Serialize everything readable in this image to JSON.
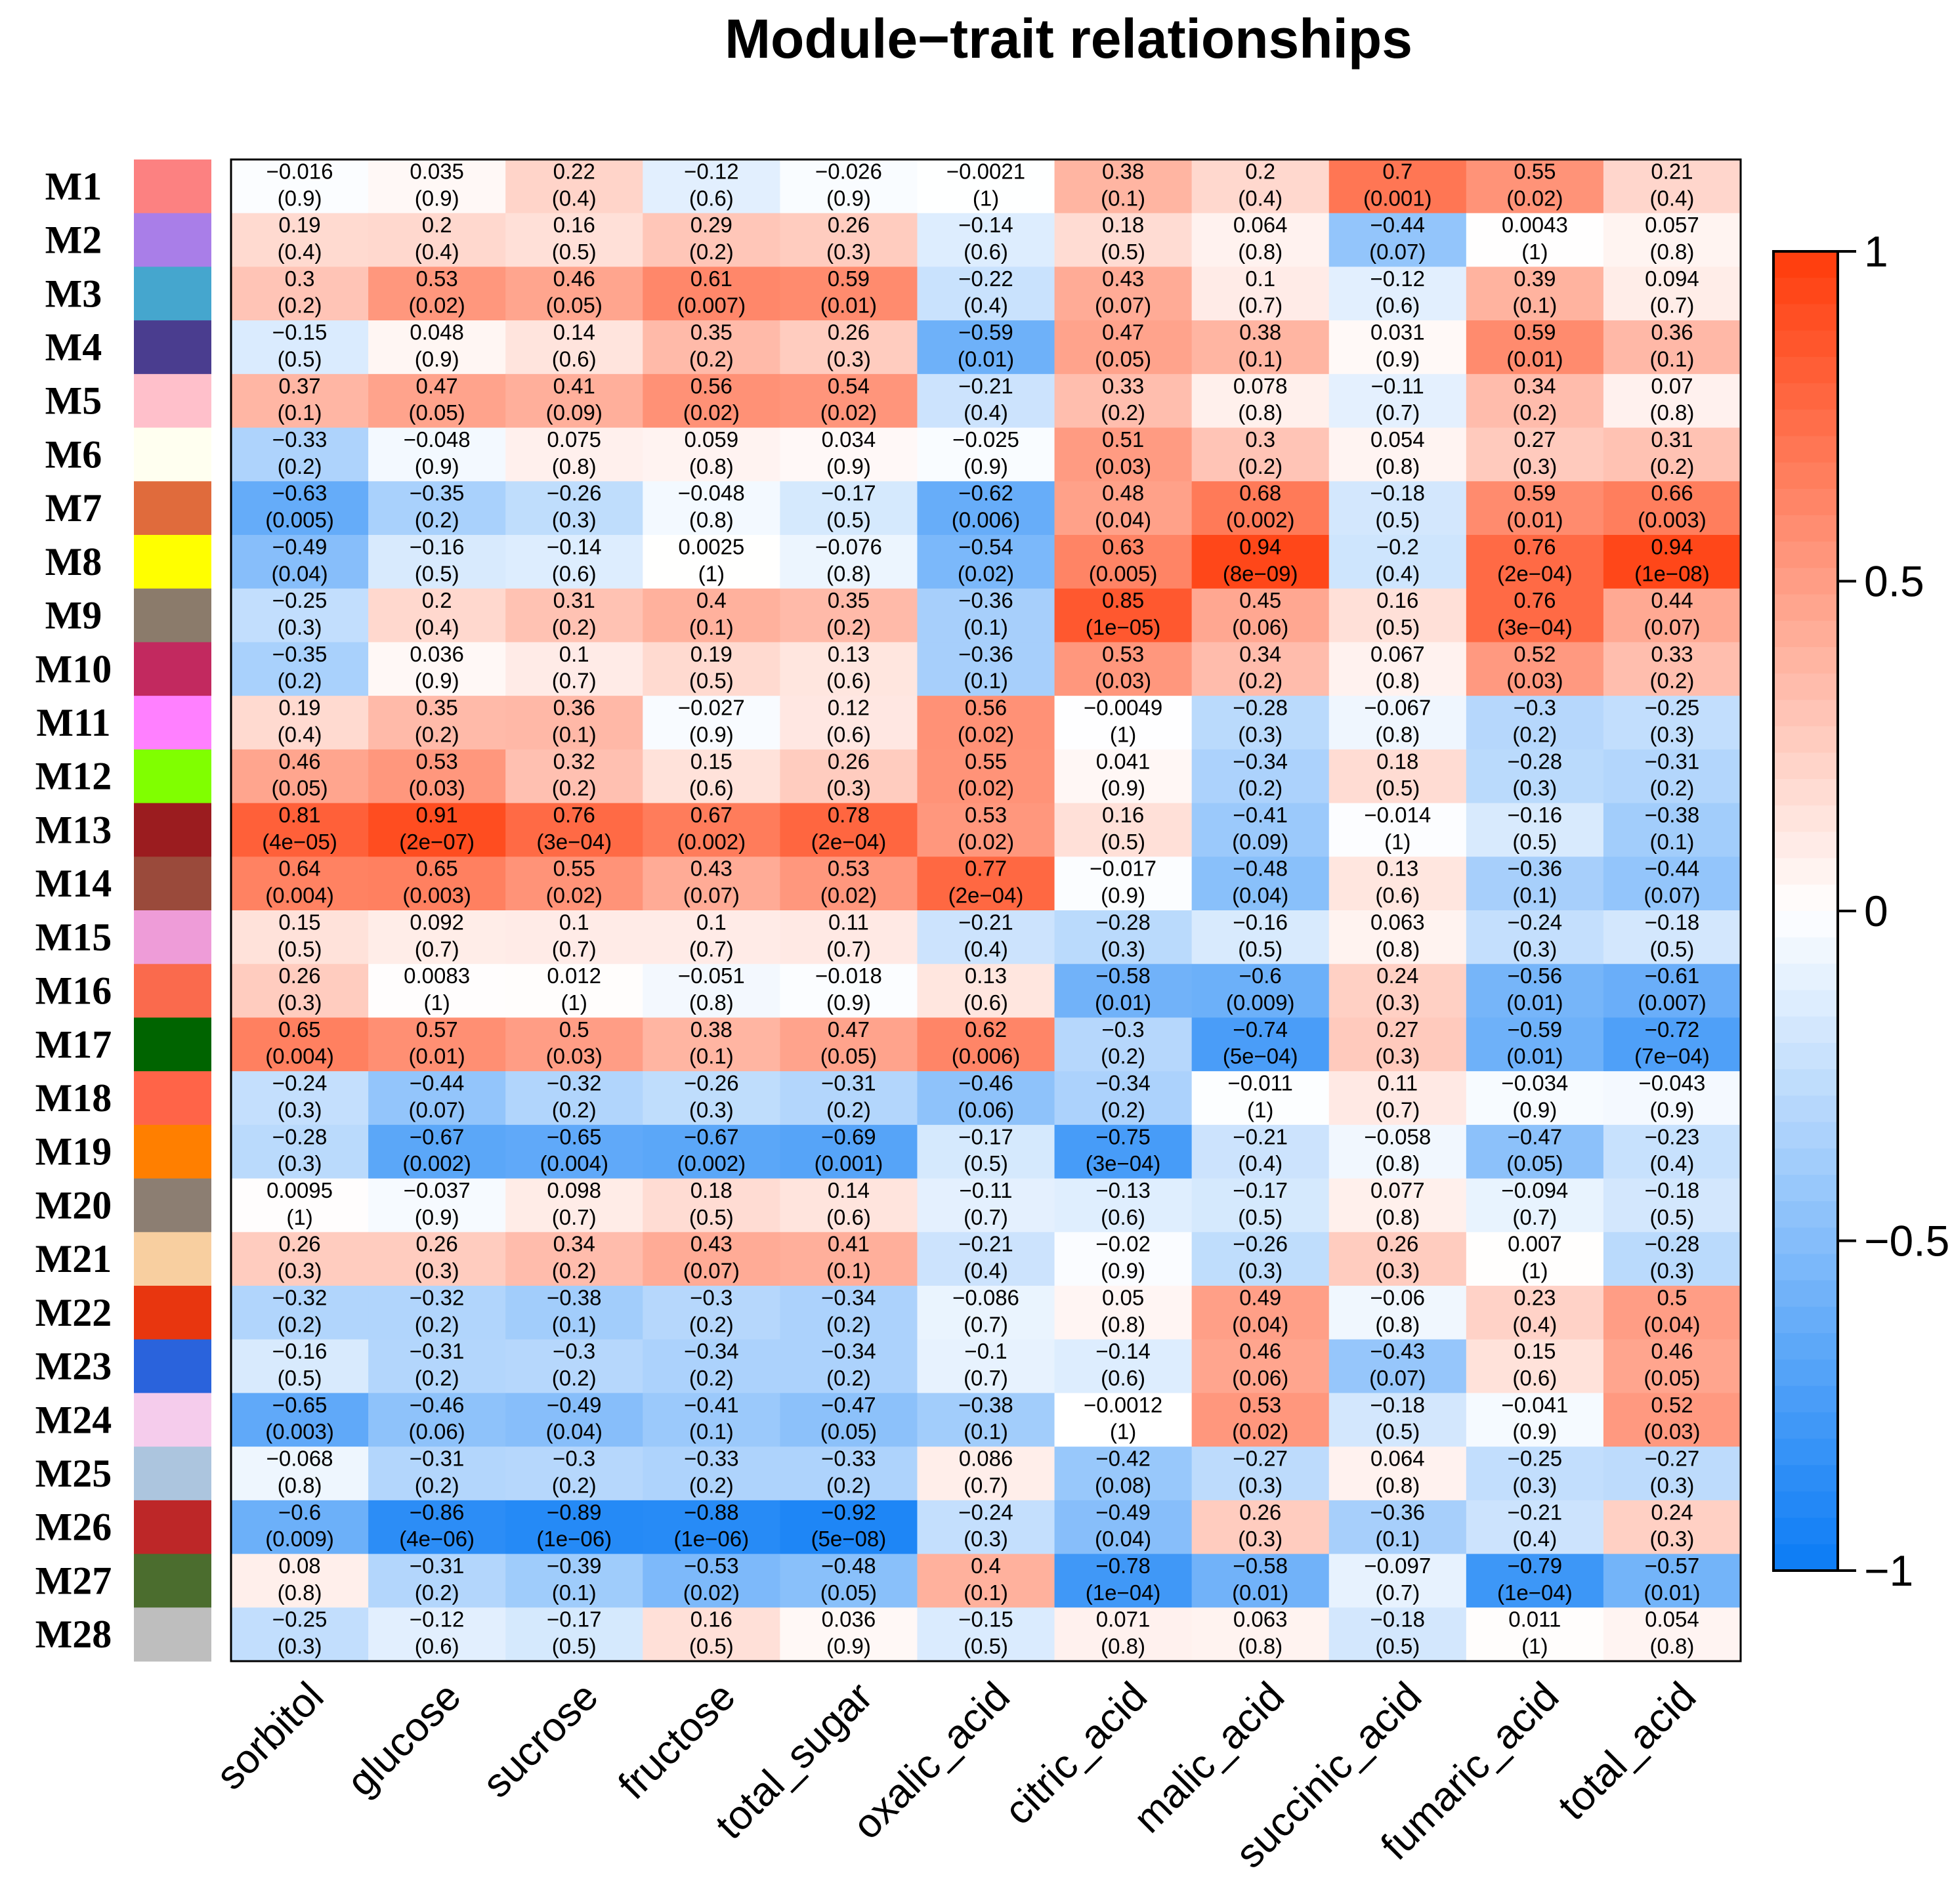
{
  "chart_data": {
    "type": "heatmap",
    "title": "Module−trait relationships",
    "modules": [
      "M1",
      "M2",
      "M3",
      "M4",
      "M5",
      "M6",
      "M7",
      "M8",
      "M9",
      "M10",
      "M11",
      "M12",
      "M13",
      "M14",
      "M15",
      "M16",
      "M17",
      "M18",
      "M19",
      "M20",
      "M21",
      "M22",
      "M23",
      "M24",
      "M25",
      "M26",
      "M27",
      "M28"
    ],
    "module_colors": [
      "#FC8181",
      "#A97EE8",
      "#45A6CE",
      "#4A3D8F",
      "#FFC0CB",
      "#FFFFF0",
      "#E06B3C",
      "#FFFF00",
      "#8B7B6B",
      "#C2295F",
      "#FF80FF",
      "#80FF00",
      "#9B1C1F",
      "#9A4A3B",
      "#EE9CD8",
      "#FA6A4D",
      "#006400",
      "#FF6448",
      "#FF7F00",
      "#8C7E72",
      "#F8CFA0",
      "#E8360F",
      "#2A63DC",
      "#F5CCEC",
      "#ACC5DE",
      "#BD2728",
      "#4B6D2E",
      "#BEBEBE"
    ],
    "traits": [
      "sorbitol",
      "glucose",
      "sucrose",
      "fructose",
      "total_sugar",
      "oxalic_acid",
      "citric_acid",
      "malic_acid",
      "succinic_acid",
      "fumaric_acid",
      "total_acid"
    ],
    "values": [
      [
        -0.016,
        0.035,
        0.22,
        -0.12,
        -0.026,
        -0.0021,
        0.38,
        0.2,
        0.7,
        0.55,
        0.21
      ],
      [
        0.19,
        0.2,
        0.16,
        0.29,
        0.26,
        -0.14,
        0.18,
        0.064,
        -0.44,
        0.0043,
        0.057
      ],
      [
        0.3,
        0.53,
        0.46,
        0.61,
        0.59,
        -0.22,
        0.43,
        0.1,
        -0.12,
        0.39,
        0.094
      ],
      [
        -0.15,
        0.048,
        0.14,
        0.35,
        0.26,
        -0.59,
        0.47,
        0.38,
        0.031,
        0.59,
        0.36
      ],
      [
        0.37,
        0.47,
        0.41,
        0.56,
        0.54,
        -0.21,
        0.33,
        0.078,
        -0.11,
        0.34,
        0.07
      ],
      [
        -0.33,
        -0.048,
        0.075,
        0.059,
        0.034,
        -0.025,
        0.51,
        0.3,
        0.054,
        0.27,
        0.31
      ],
      [
        -0.63,
        -0.35,
        -0.26,
        -0.048,
        -0.17,
        -0.62,
        0.48,
        0.68,
        -0.18,
        0.59,
        0.66
      ],
      [
        -0.49,
        -0.16,
        -0.14,
        0.0025,
        -0.076,
        -0.54,
        0.63,
        0.94,
        -0.2,
        0.76,
        0.94
      ],
      [
        -0.25,
        0.2,
        0.31,
        0.4,
        0.35,
        -0.36,
        0.85,
        0.45,
        0.16,
        0.76,
        0.44
      ],
      [
        -0.35,
        0.036,
        0.1,
        0.19,
        0.13,
        -0.36,
        0.53,
        0.34,
        0.067,
        0.52,
        0.33
      ],
      [
        0.19,
        0.35,
        0.36,
        -0.027,
        0.12,
        0.56,
        -0.0049,
        -0.28,
        -0.067,
        -0.3,
        -0.25
      ],
      [
        0.46,
        0.53,
        0.32,
        0.15,
        0.26,
        0.55,
        0.041,
        -0.34,
        0.18,
        -0.28,
        -0.31
      ],
      [
        0.81,
        0.91,
        0.76,
        0.67,
        0.78,
        0.53,
        0.16,
        -0.41,
        -0.014,
        -0.16,
        -0.38
      ],
      [
        0.64,
        0.65,
        0.55,
        0.43,
        0.53,
        0.77,
        -0.017,
        -0.48,
        0.13,
        -0.36,
        -0.44
      ],
      [
        0.15,
        0.092,
        0.1,
        0.1,
        0.11,
        -0.21,
        -0.28,
        -0.16,
        0.063,
        -0.24,
        -0.18
      ],
      [
        0.26,
        0.0083,
        0.012,
        -0.051,
        -0.018,
        0.13,
        -0.58,
        -0.6,
        0.24,
        -0.56,
        -0.61
      ],
      [
        0.65,
        0.57,
        0.5,
        0.38,
        0.47,
        0.62,
        -0.3,
        -0.74,
        0.27,
        -0.59,
        -0.72
      ],
      [
        -0.24,
        -0.44,
        -0.32,
        -0.26,
        -0.31,
        -0.46,
        -0.34,
        -0.011,
        0.11,
        -0.034,
        -0.043
      ],
      [
        -0.28,
        -0.67,
        -0.65,
        -0.67,
        -0.69,
        -0.17,
        -0.75,
        -0.21,
        -0.058,
        -0.47,
        -0.23
      ],
      [
        0.0095,
        -0.037,
        0.098,
        0.18,
        0.14,
        -0.11,
        -0.13,
        -0.17,
        0.077,
        -0.094,
        -0.18
      ],
      [
        0.26,
        0.26,
        0.34,
        0.43,
        0.41,
        -0.21,
        -0.02,
        -0.26,
        0.26,
        0.007,
        -0.28
      ],
      [
        -0.32,
        -0.32,
        -0.38,
        -0.3,
        -0.34,
        -0.086,
        0.05,
        0.49,
        -0.06,
        0.23,
        0.5
      ],
      [
        -0.16,
        -0.31,
        -0.3,
        -0.34,
        -0.34,
        -0.1,
        -0.14,
        0.46,
        -0.43,
        0.15,
        0.46
      ],
      [
        -0.65,
        -0.46,
        -0.49,
        -0.41,
        -0.47,
        -0.38,
        -0.0012,
        0.53,
        -0.18,
        -0.041,
        0.52
      ],
      [
        -0.068,
        -0.31,
        -0.3,
        -0.33,
        -0.33,
        0.086,
        -0.42,
        -0.27,
        0.064,
        -0.25,
        -0.27
      ],
      [
        -0.6,
        -0.86,
        -0.89,
        -0.88,
        -0.92,
        -0.24,
        -0.49,
        0.26,
        -0.36,
        -0.21,
        0.24
      ],
      [
        0.08,
        -0.31,
        -0.39,
        -0.53,
        -0.48,
        0.4,
        -0.78,
        -0.58,
        -0.097,
        -0.79,
        -0.57
      ],
      [
        -0.25,
        -0.12,
        -0.17,
        0.16,
        0.036,
        -0.15,
        0.071,
        0.063,
        -0.18,
        0.011,
        0.054
      ]
    ],
    "value_labels": [
      [
        "−0.016",
        "0.035",
        "0.22",
        "−0.12",
        "−0.026",
        "−0.0021",
        "0.38",
        "0.2",
        "0.7",
        "0.55",
        "0.21"
      ],
      [
        "0.19",
        "0.2",
        "0.16",
        "0.29",
        "0.26",
        "−0.14",
        "0.18",
        "0.064",
        "−0.44",
        "0.0043",
        "0.057"
      ],
      [
        "0.3",
        "0.53",
        "0.46",
        "0.61",
        "0.59",
        "−0.22",
        "0.43",
        "0.1",
        "−0.12",
        "0.39",
        "0.094"
      ],
      [
        "−0.15",
        "0.048",
        "0.14",
        "0.35",
        "0.26",
        "−0.59",
        "0.47",
        "0.38",
        "0.031",
        "0.59",
        "0.36"
      ],
      [
        "0.37",
        "0.47",
        "0.41",
        "0.56",
        "0.54",
        "−0.21",
        "0.33",
        "0.078",
        "−0.11",
        "0.34",
        "0.07"
      ],
      [
        "−0.33",
        "−0.048",
        "0.075",
        "0.059",
        "0.034",
        "−0.025",
        "0.51",
        "0.3",
        "0.054",
        "0.27",
        "0.31"
      ],
      [
        "−0.63",
        "−0.35",
        "−0.26",
        "−0.048",
        "−0.17",
        "−0.62",
        "0.48",
        "0.68",
        "−0.18",
        "0.59",
        "0.66"
      ],
      [
        "−0.49",
        "−0.16",
        "−0.14",
        "0.0025",
        "−0.076",
        "−0.54",
        "0.63",
        "0.94",
        "−0.2",
        "0.76",
        "0.94"
      ],
      [
        "−0.25",
        "0.2",
        "0.31",
        "0.4",
        "0.35",
        "−0.36",
        "0.85",
        "0.45",
        "0.16",
        "0.76",
        "0.44"
      ],
      [
        "−0.35",
        "0.036",
        "0.1",
        "0.19",
        "0.13",
        "−0.36",
        "0.53",
        "0.34",
        "0.067",
        "0.52",
        "0.33"
      ],
      [
        "0.19",
        "0.35",
        "0.36",
        "−0.027",
        "0.12",
        "0.56",
        "−0.0049",
        "−0.28",
        "−0.067",
        "−0.3",
        "−0.25"
      ],
      [
        "0.46",
        "0.53",
        "0.32",
        "0.15",
        "0.26",
        "0.55",
        "0.041",
        "−0.34",
        "0.18",
        "−0.28",
        "−0.31"
      ],
      [
        "0.81",
        "0.91",
        "0.76",
        "0.67",
        "0.78",
        "0.53",
        "0.16",
        "−0.41",
        "−0.014",
        "−0.16",
        "−0.38"
      ],
      [
        "0.64",
        "0.65",
        "0.55",
        "0.43",
        "0.53",
        "0.77",
        "−0.017",
        "−0.48",
        "0.13",
        "−0.36",
        "−0.44"
      ],
      [
        "0.15",
        "0.092",
        "0.1",
        "0.1",
        "0.11",
        "−0.21",
        "−0.28",
        "−0.16",
        "0.063",
        "−0.24",
        "−0.18"
      ],
      [
        "0.26",
        "0.0083",
        "0.012",
        "−0.051",
        "−0.018",
        "0.13",
        "−0.58",
        "−0.6",
        "0.24",
        "−0.56",
        "−0.61"
      ],
      [
        "0.65",
        "0.57",
        "0.5",
        "0.38",
        "0.47",
        "0.62",
        "−0.3",
        "−0.74",
        "0.27",
        "−0.59",
        "−0.72"
      ],
      [
        "−0.24",
        "−0.44",
        "−0.32",
        "−0.26",
        "−0.31",
        "−0.46",
        "−0.34",
        "−0.011",
        "0.11",
        "−0.034",
        "−0.043"
      ],
      [
        "−0.28",
        "−0.67",
        "−0.65",
        "−0.67",
        "−0.69",
        "−0.17",
        "−0.75",
        "−0.21",
        "−0.058",
        "−0.47",
        "−0.23"
      ],
      [
        "0.0095",
        "−0.037",
        "0.098",
        "0.18",
        "0.14",
        "−0.11",
        "−0.13",
        "−0.17",
        "0.077",
        "−0.094",
        "−0.18"
      ],
      [
        "0.26",
        "0.26",
        "0.34",
        "0.43",
        "0.41",
        "−0.21",
        "−0.02",
        "−0.26",
        "0.26",
        "0.007",
        "−0.28"
      ],
      [
        "−0.32",
        "−0.32",
        "−0.38",
        "−0.3",
        "−0.34",
        "−0.086",
        "0.05",
        "0.49",
        "−0.06",
        "0.23",
        "0.5"
      ],
      [
        "−0.16",
        "−0.31",
        "−0.3",
        "−0.34",
        "−0.34",
        "−0.1",
        "−0.14",
        "0.46",
        "−0.43",
        "0.15",
        "0.46"
      ],
      [
        "−0.65",
        "−0.46",
        "−0.49",
        "−0.41",
        "−0.47",
        "−0.38",
        "−0.0012",
        "0.53",
        "−0.18",
        "−0.041",
        "0.52"
      ],
      [
        "−0.068",
        "−0.31",
        "−0.3",
        "−0.33",
        "−0.33",
        "0.086",
        "−0.42",
        "−0.27",
        "0.064",
        "−0.25",
        "−0.27"
      ],
      [
        "−0.6",
        "−0.86",
        "−0.89",
        "−0.88",
        "−0.92",
        "−0.24",
        "−0.49",
        "0.26",
        "−0.36",
        "−0.21",
        "0.24"
      ],
      [
        "0.08",
        "−0.31",
        "−0.39",
        "−0.53",
        "−0.48",
        "0.4",
        "−0.78",
        "−0.58",
        "−0.097",
        "−0.79",
        "−0.57"
      ],
      [
        "−0.25",
        "−0.12",
        "−0.17",
        "0.16",
        "0.036",
        "−0.15",
        "0.071",
        "0.063",
        "−0.18",
        "0.011",
        "0.054"
      ]
    ],
    "p_labels": [
      [
        "(0.9)",
        "(0.9)",
        "(0.4)",
        "(0.6)",
        "(0.9)",
        "(1)",
        "(0.1)",
        "(0.4)",
        "(0.001)",
        "(0.02)",
        "(0.4)"
      ],
      [
        "(0.4)",
        "(0.4)",
        "(0.5)",
        "(0.2)",
        "(0.3)",
        "(0.6)",
        "(0.5)",
        "(0.8)",
        "(0.07)",
        "(1)",
        "(0.8)"
      ],
      [
        "(0.2)",
        "(0.02)",
        "(0.05)",
        "(0.007)",
        "(0.01)",
        "(0.4)",
        "(0.07)",
        "(0.7)",
        "(0.6)",
        "(0.1)",
        "(0.7)"
      ],
      [
        "(0.5)",
        "(0.9)",
        "(0.6)",
        "(0.2)",
        "(0.3)",
        "(0.01)",
        "(0.05)",
        "(0.1)",
        "(0.9)",
        "(0.01)",
        "(0.1)"
      ],
      [
        "(0.1)",
        "(0.05)",
        "(0.09)",
        "(0.02)",
        "(0.02)",
        "(0.4)",
        "(0.2)",
        "(0.8)",
        "(0.7)",
        "(0.2)",
        "(0.8)"
      ],
      [
        "(0.2)",
        "(0.9)",
        "(0.8)",
        "(0.8)",
        "(0.9)",
        "(0.9)",
        "(0.03)",
        "(0.2)",
        "(0.8)",
        "(0.3)",
        "(0.2)"
      ],
      [
        "(0.005)",
        "(0.2)",
        "(0.3)",
        "(0.8)",
        "(0.5)",
        "(0.006)",
        "(0.04)",
        "(0.002)",
        "(0.5)",
        "(0.01)",
        "(0.003)"
      ],
      [
        "(0.04)",
        "(0.5)",
        "(0.6)",
        "(1)",
        "(0.8)",
        "(0.02)",
        "(0.005)",
        "(8e−09)",
        "(0.4)",
        "(2e−04)",
        "(1e−08)"
      ],
      [
        "(0.3)",
        "(0.4)",
        "(0.2)",
        "(0.1)",
        "(0.2)",
        "(0.1)",
        "(1e−05)",
        "(0.06)",
        "(0.5)",
        "(3e−04)",
        "(0.07)"
      ],
      [
        "(0.2)",
        "(0.9)",
        "(0.7)",
        "(0.5)",
        "(0.6)",
        "(0.1)",
        "(0.03)",
        "(0.2)",
        "(0.8)",
        "(0.03)",
        "(0.2)"
      ],
      [
        "(0.4)",
        "(0.2)",
        "(0.1)",
        "(0.9)",
        "(0.6)",
        "(0.02)",
        "(1)",
        "(0.3)",
        "(0.8)",
        "(0.2)",
        "(0.3)"
      ],
      [
        "(0.05)",
        "(0.03)",
        "(0.2)",
        "(0.6)",
        "(0.3)",
        "(0.02)",
        "(0.9)",
        "(0.2)",
        "(0.5)",
        "(0.3)",
        "(0.2)"
      ],
      [
        "(4e−05)",
        "(2e−07)",
        "(3e−04)",
        "(0.002)",
        "(2e−04)",
        "(0.02)",
        "(0.5)",
        "(0.09)",
        "(1)",
        "(0.5)",
        "(0.1)"
      ],
      [
        "(0.004)",
        "(0.003)",
        "(0.02)",
        "(0.07)",
        "(0.02)",
        "(2e−04)",
        "(0.9)",
        "(0.04)",
        "(0.6)",
        "(0.1)",
        "(0.07)"
      ],
      [
        "(0.5)",
        "(0.7)",
        "(0.7)",
        "(0.7)",
        "(0.7)",
        "(0.4)",
        "(0.3)",
        "(0.5)",
        "(0.8)",
        "(0.3)",
        "(0.5)"
      ],
      [
        "(0.3)",
        "(1)",
        "(1)",
        "(0.8)",
        "(0.9)",
        "(0.6)",
        "(0.01)",
        "(0.009)",
        "(0.3)",
        "(0.01)",
        "(0.007)"
      ],
      [
        "(0.004)",
        "(0.01)",
        "(0.03)",
        "(0.1)",
        "(0.05)",
        "(0.006)",
        "(0.2)",
        "(5e−04)",
        "(0.3)",
        "(0.01)",
        "(7e−04)"
      ],
      [
        "(0.3)",
        "(0.07)",
        "(0.2)",
        "(0.3)",
        "(0.2)",
        "(0.06)",
        "(0.2)",
        "(1)",
        "(0.7)",
        "(0.9)",
        "(0.9)"
      ],
      [
        "(0.3)",
        "(0.002)",
        "(0.004)",
        "(0.002)",
        "(0.001)",
        "(0.5)",
        "(3e−04)",
        "(0.4)",
        "(0.8)",
        "(0.05)",
        "(0.4)"
      ],
      [
        "(1)",
        "(0.9)",
        "(0.7)",
        "(0.5)",
        "(0.6)",
        "(0.7)",
        "(0.6)",
        "(0.5)",
        "(0.8)",
        "(0.7)",
        "(0.5)"
      ],
      [
        "(0.3)",
        "(0.3)",
        "(0.2)",
        "(0.07)",
        "(0.1)",
        "(0.4)",
        "(0.9)",
        "(0.3)",
        "(0.3)",
        "(1)",
        "(0.3)"
      ],
      [
        "(0.2)",
        "(0.2)",
        "(0.1)",
        "(0.2)",
        "(0.2)",
        "(0.7)",
        "(0.8)",
        "(0.04)",
        "(0.8)",
        "(0.4)",
        "(0.04)"
      ],
      [
        "(0.5)",
        "(0.2)",
        "(0.2)",
        "(0.2)",
        "(0.2)",
        "(0.7)",
        "(0.6)",
        "(0.06)",
        "(0.07)",
        "(0.6)",
        "(0.05)"
      ],
      [
        "(0.003)",
        "(0.06)",
        "(0.04)",
        "(0.1)",
        "(0.05)",
        "(0.1)",
        "(1)",
        "(0.02)",
        "(0.5)",
        "(0.9)",
        "(0.03)"
      ],
      [
        "(0.8)",
        "(0.2)",
        "(0.2)",
        "(0.2)",
        "(0.2)",
        "(0.7)",
        "(0.08)",
        "(0.3)",
        "(0.8)",
        "(0.3)",
        "(0.3)"
      ],
      [
        "(0.009)",
        "(4e−06)",
        "(1e−06)",
        "(1e−06)",
        "(5e−08)",
        "(0.3)",
        "(0.04)",
        "(0.3)",
        "(0.1)",
        "(0.4)",
        "(0.3)"
      ],
      [
        "(0.8)",
        "(0.2)",
        "(0.1)",
        "(0.02)",
        "(0.05)",
        "(0.1)",
        "(1e−04)",
        "(0.01)",
        "(0.7)",
        "(1e−04)",
        "(0.01)"
      ],
      [
        "(0.3)",
        "(0.6)",
        "(0.5)",
        "(0.5)",
        "(0.9)",
        "(0.5)",
        "(0.8)",
        "(0.8)",
        "(0.5)",
        "(1)",
        "(0.8)"
      ]
    ],
    "color_scale": {
      "min": -1,
      "max": 1,
      "low_color": "#0A7BF5",
      "mid_color": "#FFFFFF",
      "high_color": "#FF3B0A",
      "ticks": [
        1,
        0.5,
        0,
        -0.5,
        -1
      ],
      "tick_labels": [
        "1",
        "0.5",
        "0",
        "−0.5",
        "−1"
      ]
    }
  }
}
